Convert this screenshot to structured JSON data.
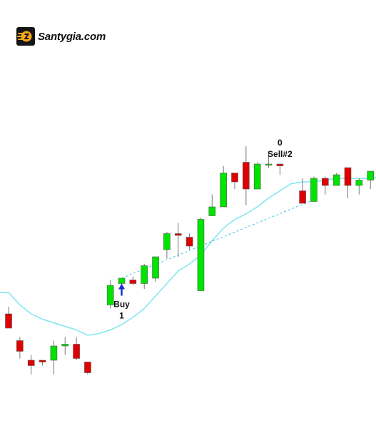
{
  "brand": {
    "name": "Santygia.com",
    "icon": "santygia-logo-icon",
    "icon_color": "#f5a41c"
  },
  "colors": {
    "up": "#00e400",
    "down": "#e00000",
    "wick": "#777777",
    "ma_line": "#7ee6ef",
    "trade_line": "#3ec6e6",
    "arrow": "#1a2ed6"
  },
  "chart_data": {
    "type": "candlestick",
    "ylim": [
      0,
      100
    ],
    "grid": false,
    "candles": [
      {
        "o": 28.0,
        "h": 30.0,
        "l": 24.5,
        "c": 24.0
      },
      {
        "o": 20.5,
        "h": 21.5,
        "l": 15.5,
        "c": 17.5
      },
      {
        "o": 15.0,
        "h": 16.5,
        "l": 11.0,
        "c": 13.5
      },
      {
        "o": 15.0,
        "h": 15.0,
        "l": 13.5,
        "c": 14.5
      },
      {
        "o": 15.0,
        "h": 20.5,
        "l": 11.0,
        "c": 19.0
      },
      {
        "o": 19.0,
        "h": 21.5,
        "l": 16.5,
        "c": 19.5
      },
      {
        "o": 19.5,
        "h": 21.5,
        "l": 15.0,
        "c": 15.5
      },
      {
        "o": 14.5,
        "h": 14.5,
        "l": 11.0,
        "c": 11.5
      },
      {},
      {
        "o": 30.5,
        "h": 37.5,
        "l": 29.5,
        "c": 36.0
      },
      {
        "o": 36.5,
        "h": 38.0,
        "l": 36.0,
        "c": 38.0
      },
      {
        "o": 37.5,
        "h": 38.5,
        "l": 36.0,
        "c": 36.5
      },
      {
        "o": 36.5,
        "h": 42.0,
        "l": 35.0,
        "c": 41.5
      },
      {
        "o": 38.0,
        "h": 44.0,
        "l": 37.0,
        "c": 44.0
      },
      {
        "o": 46.0,
        "h": 51.0,
        "l": 43.5,
        "c": 50.5
      },
      {
        "o": 50.5,
        "h": 53.5,
        "l": 44.0,
        "c": 50.0
      },
      {
        "o": 49.5,
        "h": 50.5,
        "l": 46.0,
        "c": 47.0
      },
      {
        "o": 34.5,
        "h": 55.0,
        "l": 34.5,
        "c": 54.5
      },
      {
        "o": 55.5,
        "h": 61.5,
        "l": 55.5,
        "c": 58.0
      },
      {
        "o": 58.0,
        "h": 69.5,
        "l": 58.0,
        "c": 67.5
      },
      {
        "o": 67.5,
        "h": 67.5,
        "l": 63.0,
        "c": 65.0
      },
      {
        "o": 70.5,
        "h": 75.0,
        "l": 58.5,
        "c": 63.0
      },
      {
        "o": 63.0,
        "h": 70.5,
        "l": 63.0,
        "c": 70.0
      },
      {
        "o": 70.0,
        "h": 73.0,
        "l": 69.0,
        "c": 70.0
      },
      {
        "o": 70.0,
        "h": 70.0,
        "l": 67.0,
        "c": 69.5
      },
      {},
      {
        "o": 62.5,
        "h": 66.0,
        "l": 60.0,
        "c": 59.0
      },
      {
        "o": 59.5,
        "h": 66.5,
        "l": 59.5,
        "c": 66.0
      },
      {
        "o": 66.0,
        "h": 66.5,
        "l": 61.5,
        "c": 64.0
      },
      {
        "o": 64.0,
        "h": 67.5,
        "l": 64.0,
        "c": 67.0
      },
      {
        "o": 69.0,
        "h": 69.0,
        "l": 60.5,
        "c": 64.0
      },
      {
        "o": 64.0,
        "h": 66.0,
        "l": 61.5,
        "c": 65.5
      },
      {
        "o": 65.5,
        "h": 68.0,
        "l": 63.0,
        "c": 68.0
      },
      {
        "o": 68.0,
        "h": 68.0,
        "l": 65.0,
        "c": 66.0
      },
      {
        "o": 68.5,
        "h": 71.0,
        "l": 67.0,
        "c": 70.0
      },
      {
        "o": 70.0,
        "h": 71.0,
        "l": 68.0,
        "c": 69.5
      }
    ],
    "moving_average": [
      34.0,
      30.5,
      28.0,
      26.5,
      25.5,
      24.5,
      23.5,
      22.0,
      22.5,
      23.5,
      25.0,
      27.0,
      29.5,
      33.0,
      36.5,
      40.0,
      42.0,
      44.5,
      48.5,
      52.0,
      54.5,
      56.0,
      58.0,
      60.5,
      62.5,
      64.5,
      65.0,
      65.0,
      65.5,
      66.0,
      66.0,
      66.0,
      66.0,
      66.5,
      66.5,
      67.0
    ],
    "trade_line": {
      "from": [
        10,
        38.0
      ],
      "to": [
        27,
        60.0
      ]
    },
    "annotations": [
      {
        "type": "buy",
        "index": 10,
        "value": 36.5,
        "label": "Buy",
        "count": "1"
      },
      {
        "type": "sell",
        "index": 24,
        "value": 71.0,
        "label": "Sell#2",
        "count": "0"
      }
    ]
  }
}
